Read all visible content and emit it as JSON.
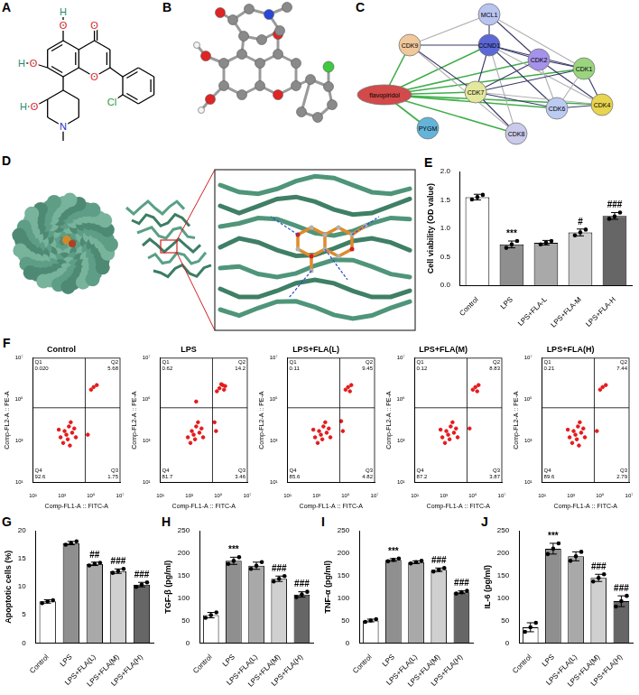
{
  "panels": [
    {
      "letter": "A",
      "type": "structure",
      "atoms": [
        "O",
        "O",
        "H",
        "O",
        "H",
        "O",
        "O",
        "H",
        "N",
        "Cl"
      ]
    },
    {
      "letter": "B",
      "type": "molecule_3d"
    },
    {
      "letter": "C",
      "type": "network",
      "nodes": [
        {
          "label": "flavopiridol",
          "color": "#d24a4a"
        },
        {
          "label": "MCL1",
          "color": "#b9c4f0"
        },
        {
          "label": "CDK9",
          "color": "#f0c89c"
        },
        {
          "label": "CCND1",
          "color": "#5b68d6"
        },
        {
          "label": "CDK2",
          "color": "#a592ea"
        },
        {
          "label": "CDK1",
          "color": "#9ad47e"
        },
        {
          "label": "CDK4",
          "color": "#e8d44e"
        },
        {
          "label": "CDK6",
          "color": "#bccbf2"
        },
        {
          "label": "CDK7",
          "color": "#e4e89e"
        },
        {
          "label": "CDK8",
          "color": "#cacaea"
        },
        {
          "label": "PYGM",
          "color": "#64b4da"
        }
      ],
      "edges": [
        [
          0,
          2
        ],
        [
          0,
          3
        ],
        [
          0,
          4
        ],
        [
          0,
          5
        ],
        [
          0,
          6
        ],
        [
          0,
          7
        ],
        [
          0,
          8
        ],
        [
          0,
          9
        ],
        [
          0,
          10
        ],
        [
          1,
          2
        ],
        [
          1,
          3
        ],
        [
          1,
          4
        ],
        [
          1,
          5
        ],
        [
          2,
          3
        ],
        [
          2,
          8
        ],
        [
          2,
          9
        ],
        [
          3,
          4
        ],
        [
          3,
          5
        ],
        [
          3,
          6
        ],
        [
          3,
          7
        ],
        [
          3,
          8
        ],
        [
          3,
          9
        ],
        [
          4,
          5
        ],
        [
          4,
          6
        ],
        [
          4,
          7
        ],
        [
          4,
          8
        ],
        [
          5,
          6
        ],
        [
          5,
          7
        ],
        [
          5,
          8
        ],
        [
          6,
          7
        ],
        [
          6,
          8
        ],
        [
          7,
          8
        ],
        [
          8,
          9
        ]
      ]
    },
    {
      "letter": "D",
      "type": "docking"
    }
  ],
  "chart_data": [
    {
      "panel": "E",
      "type": "bar",
      "y_label": "Cell viability (OD value)",
      "categories": [
        "Control",
        "LPS",
        "LPS+FLA-L",
        "LPS+FLA-M",
        "LPS+FLA-H"
      ],
      "values": [
        1.55,
        0.72,
        0.75,
        0.93,
        1.22
      ],
      "errors": [
        0.05,
        0.06,
        0.04,
        0.06,
        0.06
      ],
      "points": [
        [
          1.51,
          1.55,
          1.59
        ],
        [
          0.66,
          0.72,
          0.78
        ],
        [
          0.72,
          0.75,
          0.78
        ],
        [
          0.88,
          0.93,
          0.98
        ],
        [
          1.17,
          1.21,
          1.28
        ]
      ],
      "annotations": [
        null,
        "***",
        null,
        "#",
        "###"
      ],
      "colors": [
        "#ffffff",
        "#8f8f8f",
        "#a9a9a9",
        "#d0d0d0",
        "#666666"
      ],
      "ylim": [
        0,
        2
      ],
      "yticks": [
        {
          "value": 0,
          "label": "0.0"
        },
        {
          "value": 0.5,
          "label": "0.5"
        },
        {
          "value": 1,
          "label": "1.0"
        },
        {
          "value": 1.5,
          "label": "1.5"
        },
        {
          "value": 2,
          "label": "2.0"
        }
      ],
      "grid": false
    },
    {
      "panel": "F",
      "type": "scatter",
      "title": "Control",
      "x_label": "Comp-FL1-A :: FITC-A",
      "y_label": "Comp-FL2-A :: PE-A",
      "log": true,
      "color": "#e41a1c",
      "x": [
        800,
        1500,
        2500,
        3000,
        5000,
        1200,
        4000,
        7000,
        2000,
        600,
        9000,
        3500,
        150000,
        250000,
        100000,
        60000
      ],
      "values": [
        1500,
        3000,
        1200,
        5000,
        2500,
        800,
        8000,
        4000,
        2000,
        3500,
        1500,
        600,
        400000,
        500000,
        300000,
        2000
      ],
      "gates": [
        40000,
        40000
      ],
      "quadrants": [
        {
          "name": "Q1",
          "value": 0.02,
          "label": "0.020"
        },
        {
          "name": "Q2",
          "value": 5.68
        },
        {
          "name": "Q3",
          "value": 1.75
        },
        {
          "name": "Q4",
          "value": 92.6
        }
      ],
      "xlim": [
        10,
        10000000
      ],
      "ylim": [
        10,
        10000000
      ],
      "xticks": [
        {
          "value": 10,
          "label": "10¹"
        },
        {
          "value": 1000,
          "label": "10³"
        },
        {
          "value": 100000,
          "label": "10⁵"
        },
        {
          "value": 10000000,
          "label": "10⁷"
        }
      ],
      "yticks": [
        {
          "value": 10,
          "label": "10¹"
        },
        {
          "value": 1000,
          "label": "10³"
        },
        {
          "value": 100000,
          "label": "10⁵"
        },
        {
          "value": 10000000,
          "label": "10⁷"
        }
      ],
      "grid": false
    },
    {
      "type": "scatter",
      "title": "LPS",
      "x_label": "Comp-FL1-A :: FITC-A",
      "y_label": "Comp-FL2-A :: PE-A",
      "log": true,
      "color": "#e41a1c",
      "x": [
        800,
        1500,
        2500,
        3000,
        5000,
        1200,
        4000,
        7000,
        2000,
        9000,
        120000,
        200000,
        300000,
        80000,
        160000,
        250000,
        70000,
        55000,
        3000
      ],
      "values": [
        1500,
        3000,
        1200,
        5000,
        2500,
        800,
        8000,
        4000,
        2000,
        1500,
        350000,
        500000,
        450000,
        250000,
        550000,
        300000,
        3000,
        8000,
        80000
      ],
      "gates": [
        40000,
        40000
      ],
      "quadrants": [
        {
          "name": "Q1",
          "value": 0.62
        },
        {
          "name": "Q2",
          "value": 14.2
        },
        {
          "name": "Q3",
          "value": 3.46
        },
        {
          "name": "Q4",
          "value": 81.7
        }
      ],
      "xlim": [
        10,
        10000000
      ],
      "ylim": [
        10,
        10000000
      ],
      "xticks": [
        {
          "value": 10,
          "label": "10¹"
        },
        {
          "value": 1000,
          "label": "10³"
        },
        {
          "value": 100000,
          "label": "10⁵"
        },
        {
          "value": 10000000,
          "label": "10⁷"
        }
      ],
      "yticks": [
        {
          "value": 10,
          "label": "10¹"
        },
        {
          "value": 1000,
          "label": "10³"
        },
        {
          "value": 100000,
          "label": "10⁵"
        },
        {
          "value": 10000000,
          "label": "10⁷"
        }
      ],
      "grid": false
    },
    {
      "type": "scatter",
      "title": "LPS+FLA(L)",
      "x_label": "Comp-FL1-A :: FITC-A",
      "y_label": "Comp-FL2-A :: PE-A",
      "log": true,
      "color": "#e41a1c",
      "x": [
        800,
        1500,
        2500,
        3000,
        5000,
        1200,
        4000,
        7000,
        2000,
        600,
        9000,
        150000,
        250000,
        100000,
        200000,
        65000,
        50000
      ],
      "values": [
        1500,
        3000,
        1200,
        5000,
        2500,
        800,
        8000,
        4000,
        2000,
        3500,
        1500,
        400000,
        500000,
        300000,
        250000,
        3000,
        9000
      ],
      "gates": [
        40000,
        40000
      ],
      "quadrants": [
        {
          "name": "Q1",
          "value": 0.11
        },
        {
          "name": "Q2",
          "value": 9.45
        },
        {
          "name": "Q3",
          "value": 4.82
        },
        {
          "name": "Q4",
          "value": 85.6
        }
      ],
      "xlim": [
        10,
        10000000
      ],
      "ylim": [
        10,
        10000000
      ],
      "xticks": [
        {
          "value": 10,
          "label": "10¹"
        },
        {
          "value": 1000,
          "label": "10³"
        },
        {
          "value": 100000,
          "label": "10⁵"
        },
        {
          "value": 10000000,
          "label": "10⁷"
        }
      ],
      "yticks": [
        {
          "value": 10,
          "label": "10¹"
        },
        {
          "value": 1000,
          "label": "10³"
        },
        {
          "value": 100000,
          "label": "10⁵"
        },
        {
          "value": 10000000,
          "label": "10⁷"
        }
      ],
      "grid": false
    },
    {
      "type": "scatter",
      "title": "LPS+FLA(M)",
      "x_label": "Comp-FL1-A :: FITC-A",
      "y_label": "Comp-FL2-A :: PE-A",
      "log": true,
      "color": "#e41a1c",
      "x": [
        800,
        1500,
        2500,
        3000,
        5000,
        1200,
        4000,
        7000,
        2000,
        600,
        9000,
        150000,
        250000,
        100000,
        200000,
        60000
      ],
      "values": [
        1500,
        3000,
        1200,
        5000,
        2500,
        800,
        8000,
        4000,
        2000,
        3500,
        1500,
        400000,
        500000,
        300000,
        250000,
        4000
      ],
      "gates": [
        40000,
        40000
      ],
      "quadrants": [
        {
          "name": "Q1",
          "value": 0.12
        },
        {
          "name": "Q2",
          "value": 8.83
        },
        {
          "name": "Q3",
          "value": 3.87
        },
        {
          "name": "Q4",
          "value": 87.2
        }
      ],
      "xlim": [
        10,
        10000000
      ],
      "ylim": [
        10,
        10000000
      ],
      "xticks": [
        {
          "value": 10,
          "label": "10¹"
        },
        {
          "value": 1000,
          "label": "10³"
        },
        {
          "value": 100000,
          "label": "10⁵"
        },
        {
          "value": 10000000,
          "label": "10⁷"
        }
      ],
      "yticks": [
        {
          "value": 10,
          "label": "10¹"
        },
        {
          "value": 1000,
          "label": "10³"
        },
        {
          "value": 100000,
          "label": "10⁵"
        },
        {
          "value": 10000000,
          "label": "10⁷"
        }
      ],
      "grid": false
    },
    {
      "type": "scatter",
      "title": "LPS+FLA(H)",
      "x_label": "Comp-FL1-A :: FITC-A",
      "y_label": "Comp-FL2-A :: PE-A",
      "log": true,
      "color": "#e41a1c",
      "x": [
        800,
        1500,
        2500,
        3000,
        5000,
        1200,
        4000,
        7000,
        2000,
        600,
        9000,
        3500,
        150000,
        250000,
        100000,
        60000
      ],
      "values": [
        1500,
        3000,
        1200,
        5000,
        2500,
        800,
        8000,
        4000,
        2000,
        3500,
        1500,
        600,
        400000,
        500000,
        300000,
        3000
      ],
      "gates": [
        40000,
        40000
      ],
      "quadrants": [
        {
          "name": "Q1",
          "value": 0.21
        },
        {
          "name": "Q2",
          "value": 7.44
        },
        {
          "name": "Q3",
          "value": 2.79
        },
        {
          "name": "Q4",
          "value": 89.6
        }
      ],
      "xlim": [
        10,
        10000000
      ],
      "ylim": [
        10,
        10000000
      ],
      "xticks": [
        {
          "value": 10,
          "label": "10¹"
        },
        {
          "value": 1000,
          "label": "10³"
        },
        {
          "value": 100000,
          "label": "10⁵"
        },
        {
          "value": 10000000,
          "label": "10⁷"
        }
      ],
      "yticks": [
        {
          "value": 10,
          "label": "10¹"
        },
        {
          "value": 1000,
          "label": "10³"
        },
        {
          "value": 100000,
          "label": "10⁵"
        },
        {
          "value": 10000000,
          "label": "10⁷"
        }
      ],
      "grid": false
    },
    {
      "panel": "G",
      "type": "bar",
      "y_label": "Apoptotic cells (%)",
      "categories": [
        "Control",
        "LPS",
        "LPS+FLA(L)",
        "LPS+FLA(M)",
        "LPS+FLA(H)"
      ],
      "values": [
        7.4,
        17.8,
        14.1,
        12.8,
        10.4
      ],
      "errors": [
        0.3,
        0.3,
        0.3,
        0.4,
        0.4
      ],
      "points": [
        [
          7.1,
          7.4,
          7.6
        ],
        [
          17.5,
          17.8,
          18.1
        ],
        [
          13.8,
          14.1,
          14.3
        ],
        [
          12.5,
          12.8,
          13.2
        ],
        [
          10.0,
          10.4,
          10.8
        ]
      ],
      "annotations": [
        null,
        null,
        "##",
        "###",
        "###"
      ],
      "colors": [
        "#ffffff",
        "#8f8f8f",
        "#a9a9a9",
        "#d0d0d0",
        "#666666"
      ],
      "ylim": [
        0,
        20
      ],
      "yticks": [
        0,
        5,
        10,
        15,
        20
      ],
      "grid": false
    },
    {
      "panel": "H",
      "type": "bar",
      "y_label": "TGF-β (pg/ml)",
      "categories": [
        "Control",
        "LPS",
        "LPS+FLA(L)",
        "LPS+FLA(M)",
        "LPS+FLA(H)"
      ],
      "values": [
        62,
        183,
        172,
        143,
        108
      ],
      "errors": [
        6,
        8,
        8,
        6,
        6
      ],
      "points": [
        [
          56,
          62,
          68
        ],
        [
          176,
          183,
          191
        ],
        [
          165,
          172,
          180
        ],
        [
          137,
          143,
          149
        ],
        [
          102,
          108,
          114
        ]
      ],
      "annotations": [
        null,
        "***",
        null,
        "###",
        "###"
      ],
      "colors": [
        "#ffffff",
        "#8f8f8f",
        "#a9a9a9",
        "#d0d0d0",
        "#666666"
      ],
      "ylim": [
        0,
        250
      ],
      "yticks": [
        0,
        50,
        100,
        150,
        200,
        250
      ],
      "grid": false
    },
    {
      "panel": "I",
      "type": "bar",
      "y_label": "TNF-α (pg/ml)",
      "categories": [
        "Control",
        "LPS",
        "LPS+FLA(L)",
        "LPS+FLA(M)",
        "LPS+FLA(H)"
      ],
      "values": [
        50,
        185,
        180,
        163,
        113
      ],
      "errors": [
        3,
        3,
        3,
        4,
        3
      ],
      "points": [
        [
          47,
          50,
          53
        ],
        [
          182,
          185,
          188
        ],
        [
          177,
          180,
          183
        ],
        [
          159,
          163,
          167
        ],
        [
          110,
          113,
          116
        ]
      ],
      "annotations": [
        null,
        "***",
        null,
        "###",
        "###"
      ],
      "colors": [
        "#ffffff",
        "#8f8f8f",
        "#a9a9a9",
        "#d0d0d0",
        "#666666"
      ],
      "ylim": [
        0,
        250
      ],
      "yticks": [
        0,
        50,
        100,
        150,
        200,
        250
      ],
      "grid": false
    },
    {
      "panel": "J",
      "type": "bar",
      "y_label": "IL-6 (pg/ml)",
      "categories": [
        "Control",
        "LPS",
        "LPS+FLA(L)",
        "LPS+FLA(M)",
        "LPS+FLA(H)"
      ],
      "values": [
        35,
        210,
        193,
        145,
        93
      ],
      "errors": [
        10,
        12,
        10,
        8,
        12
      ],
      "points": [
        [
          25,
          35,
          45
        ],
        [
          198,
          210,
          222
        ],
        [
          183,
          193,
          203
        ],
        [
          137,
          145,
          153
        ],
        [
          81,
          93,
          105
        ]
      ],
      "annotations": [
        null,
        "***",
        null,
        "###",
        "###"
      ],
      "colors": [
        "#ffffff",
        "#8f8f8f",
        "#a9a9a9",
        "#d0d0d0",
        "#666666"
      ],
      "ylim": [
        0,
        250
      ],
      "yticks": [
        0,
        50,
        100,
        150,
        200,
        250
      ],
      "grid": false
    }
  ]
}
